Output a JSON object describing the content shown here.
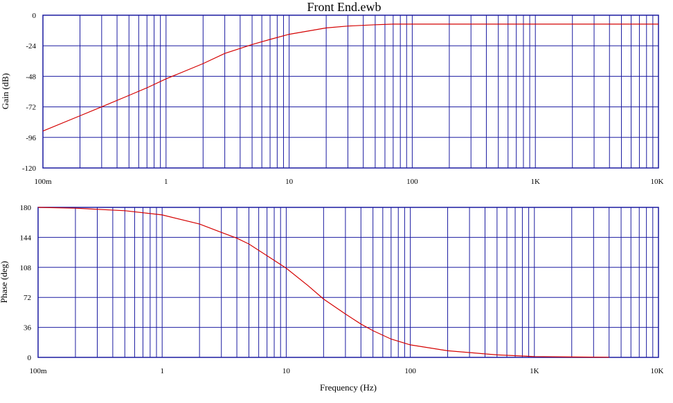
{
  "title": "Front End.ewb",
  "colors": {
    "grid": "#1a1aa0",
    "curve": "#d40000",
    "frame": "#1a1aa0"
  },
  "chart_data": [
    {
      "type": "line",
      "name": "gain",
      "x_scale": "log",
      "xlim": [
        0.1,
        10000
      ],
      "ylim": [
        -120,
        0
      ],
      "ylabel": "Gain (dB)",
      "xlabel": "",
      "x_tick_labels": [
        "100m",
        "1",
        "10",
        "100",
        "1K",
        "10K"
      ],
      "y_tick_values": [
        0,
        -24,
        -48,
        -72,
        -96,
        -120
      ],
      "y_tick_labels": [
        "0",
        "-24",
        "-48",
        "-72",
        "-96",
        "-120"
      ],
      "grid": true,
      "series": [
        {
          "x": [
            0.1,
            0.2,
            0.3,
            0.5,
            0.7,
            1,
            2,
            3,
            5,
            7,
            10,
            20,
            30,
            50,
            70,
            100,
            1000,
            10000
          ],
          "y": [
            -91,
            -79,
            -72,
            -63,
            -57,
            -50,
            -38,
            -30,
            -23,
            -19,
            -15,
            -10,
            -8.5,
            -7.5,
            -7,
            -7,
            -7,
            -7
          ]
        }
      ]
    },
    {
      "type": "line",
      "name": "phase",
      "x_scale": "log",
      "xlim": [
        0.1,
        10000
      ],
      "ylim": [
        0,
        180
      ],
      "ylabel": "Phase (deg)",
      "xlabel": "Frequency (Hz)",
      "x_tick_labels": [
        "100m",
        "1",
        "10",
        "100",
        "1K",
        "10K"
      ],
      "y_tick_values": [
        180,
        144,
        108,
        72,
        36,
        0
      ],
      "y_tick_labels": [
        "180",
        "144",
        "108",
        "72",
        "36",
        "0"
      ],
      "grid": true,
      "series": [
        {
          "x": [
            0.1,
            0.2,
            0.5,
            1,
            2,
            3,
            4,
            5,
            7,
            10,
            15,
            20,
            30,
            40,
            50,
            70,
            100,
            200,
            500,
            1000,
            2000,
            4000
          ],
          "y": [
            180,
            179,
            176,
            171,
            160,
            150,
            143,
            136,
            122,
            107,
            86,
            70,
            52,
            40,
            32,
            22,
            15,
            8,
            3,
            1,
            0.5,
            0.2
          ]
        }
      ]
    }
  ]
}
